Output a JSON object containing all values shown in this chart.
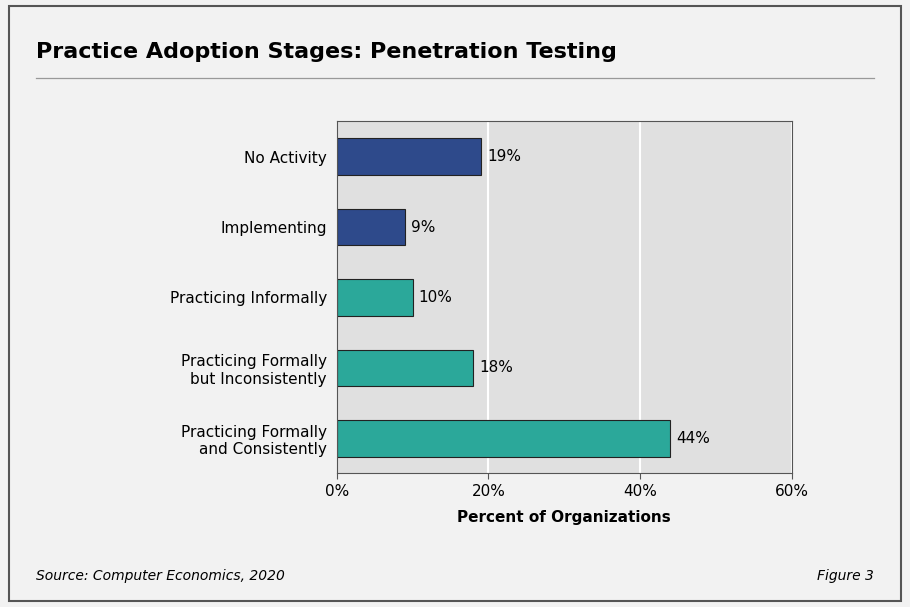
{
  "title": "Practice Adoption Stages: Penetration Testing",
  "categories": [
    "No Activity",
    "Implementing",
    "Practicing Informally",
    "Practicing Formally\nbut Inconsistently",
    "Practicing Formally\nand Consistently"
  ],
  "values": [
    19,
    9,
    10,
    18,
    44
  ],
  "bar_colors": [
    "#2E4A8B",
    "#2E4A8B",
    "#2BA89A",
    "#2BA89A",
    "#2BA89A"
  ],
  "xlabel": "Percent of Organizations",
  "xlim": [
    0,
    60
  ],
  "xticks": [
    0,
    20,
    40,
    60
  ],
  "xticklabels": [
    "0%",
    "20%",
    "40%",
    "60%"
  ],
  "source_text": "Source: Computer Economics, 2020",
  "figure_text": "Figure 3",
  "plot_bg_color": "#E0E0E0",
  "outer_bg_color": "#F2F2F2",
  "bar_edge_color": "#222222",
  "grid_color": "#FFFFFF",
  "title_fontsize": 16,
  "label_fontsize": 11,
  "tick_fontsize": 11,
  "value_fontsize": 11,
  "source_fontsize": 10,
  "bar_height": 0.52
}
